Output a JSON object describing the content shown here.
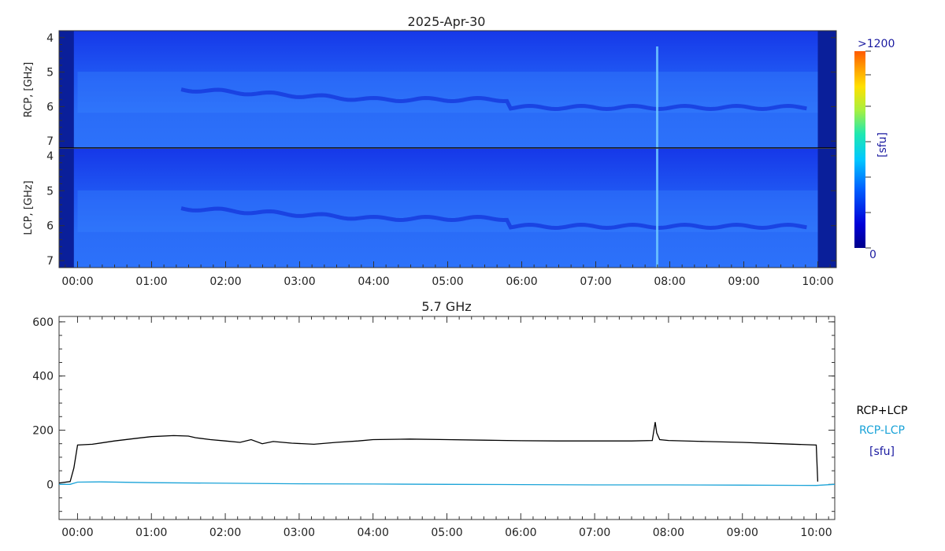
{
  "colors": {
    "spectrum_top": "#1a3ff0",
    "spectrum_mid": "#1f6df5",
    "spectrum_dark": "#0a1f9a",
    "sum_line": "#000000",
    "diff_line": "#1aa3d8",
    "sfu_label": "#1a1aa0",
    "divider": "#000000"
  },
  "chart_data": [
    {
      "type": "heatmap",
      "title": "2025-Apr-30",
      "ylabel": "RCP, [GHz]",
      "y_ticks": [
        "4",
        "5",
        "6",
        "7"
      ],
      "ylim": [
        7.2,
        3.8
      ],
      "x_ticks": [
        "00:00",
        "01:00",
        "02:00",
        "03:00",
        "04:00",
        "05:00",
        "06:00",
        "07:00",
        "08:00",
        "09:00",
        "10:00"
      ],
      "xlim_hours": [
        -0.25,
        10.25
      ],
      "features": [
        {
          "label": "dark band before start",
          "from_h": -0.25,
          "to_h": -0.05
        },
        {
          "label": "dark band after end",
          "from_h": 10.0,
          "to_h": 10.25
        },
        {
          "label": "burst",
          "at_h": 7.83
        }
      ]
    },
    {
      "type": "heatmap",
      "ylabel": "LCP, [GHz]",
      "y_ticks": [
        "4",
        "5",
        "6",
        "7"
      ],
      "ylim": [
        7.2,
        3.8
      ],
      "x_ticks": [
        "00:00",
        "01:00",
        "02:00",
        "03:00",
        "04:00",
        "05:00",
        "06:00",
        "07:00",
        "08:00",
        "09:00",
        "10:00"
      ],
      "xlim_hours": [
        -0.25,
        10.25
      ]
    },
    {
      "type": "line",
      "title": "5.7 GHz",
      "y_ticks": [
        "0",
        "200",
        "400",
        "600"
      ],
      "ylim": [
        -130,
        620
      ],
      "x_ticks": [
        "00:00",
        "01:00",
        "02:00",
        "03:00",
        "04:00",
        "05:00",
        "06:00",
        "07:00",
        "08:00",
        "09:00",
        "10:00"
      ],
      "xlim_hours": [
        -0.25,
        10.25
      ],
      "series": [
        {
          "name": "RCP+LCP",
          "x": [
            -0.25,
            -0.1,
            -0.05,
            0.0,
            0.2,
            0.5,
            0.8,
            1.0,
            1.3,
            1.5,
            1.6,
            1.8,
            2.0,
            2.2,
            2.35,
            2.5,
            2.65,
            2.9,
            3.2,
            3.5,
            3.8,
            4.0,
            4.5,
            5.0,
            5.5,
            6.0,
            6.5,
            7.0,
            7.5,
            7.78,
            7.82,
            7.84,
            7.88,
            8.0,
            8.5,
            9.0,
            9.5,
            10.0,
            10.02
          ],
          "values": [
            5,
            10,
            60,
            145,
            148,
            160,
            170,
            176,
            180,
            178,
            172,
            165,
            160,
            155,
            165,
            150,
            158,
            152,
            148,
            155,
            160,
            165,
            167,
            165,
            163,
            161,
            160,
            160,
            160,
            162,
            230,
            190,
            165,
            162,
            158,
            155,
            150,
            145,
            10
          ]
        },
        {
          "name": "RCP-LCP",
          "x": [
            -0.25,
            -0.1,
            0.0,
            0.3,
            1.0,
            2.0,
            3.0,
            4.0,
            5.0,
            6.0,
            7.0,
            8.0,
            9.0,
            10.0,
            10.25
          ],
          "values": [
            0,
            0,
            8,
            9,
            6,
            4,
            2,
            1,
            0,
            -1,
            -2,
            -2,
            -3,
            -4,
            0
          ]
        }
      ]
    }
  ],
  "colorbar": {
    "max_label": ">1200",
    "min_label": "0",
    "unit_label": "[sfu]"
  },
  "legend": {
    "sum_label": "RCP+LCP",
    "diff_label": "RCP-LCP",
    "unit_label": "[sfu]"
  }
}
